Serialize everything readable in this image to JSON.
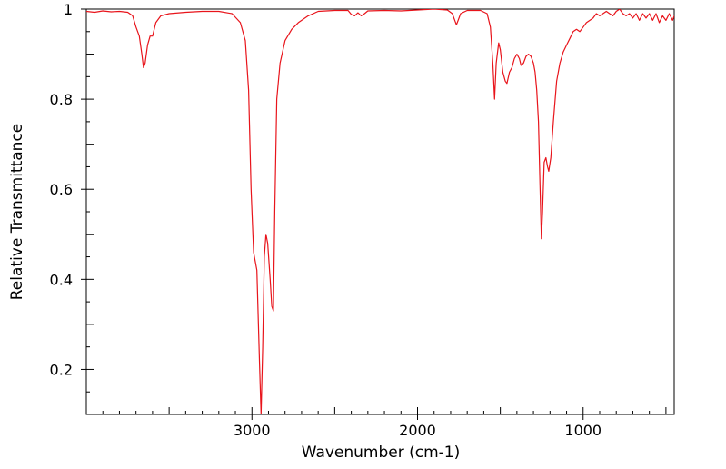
{
  "chart_data": {
    "type": "line",
    "title": "",
    "xlabel": "Wavenumber (cm-1)",
    "ylabel": "Relative Transmittance",
    "xlim": [
      4000,
      450
    ],
    "ylim": [
      0.1,
      1.0
    ],
    "x_reversed": true,
    "grid": false,
    "legend": "none",
    "line_color": "#e8141b",
    "x_ticks": [
      {
        "value": 3000,
        "label": "3000"
      },
      {
        "value": 2000,
        "label": "2000"
      },
      {
        "value": 1000,
        "label": "1000"
      }
    ],
    "y_ticks": [
      {
        "value": 1.0,
        "label": "1"
      },
      {
        "value": 0.8,
        "label": "0.8"
      },
      {
        "value": 0.6,
        "label": "0.6"
      },
      {
        "value": 0.4,
        "label": "0.4"
      },
      {
        "value": 0.2,
        "label": "0.2"
      }
    ],
    "series": [
      {
        "points": [
          [
            4000,
            0.995
          ],
          [
            3950,
            0.993
          ],
          [
            3900,
            0.996
          ],
          [
            3850,
            0.994
          ],
          [
            3800,
            0.995
          ],
          [
            3750,
            0.993
          ],
          [
            3720,
            0.985
          ],
          [
            3700,
            0.96
          ],
          [
            3680,
            0.94
          ],
          [
            3665,
            0.9
          ],
          [
            3655,
            0.87
          ],
          [
            3645,
            0.88
          ],
          [
            3630,
            0.92
          ],
          [
            3615,
            0.94
          ],
          [
            3600,
            0.94
          ],
          [
            3580,
            0.97
          ],
          [
            3550,
            0.985
          ],
          [
            3500,
            0.99
          ],
          [
            3400,
            0.993
          ],
          [
            3300,
            0.995
          ],
          [
            3200,
            0.995
          ],
          [
            3120,
            0.99
          ],
          [
            3070,
            0.97
          ],
          [
            3040,
            0.93
          ],
          [
            3020,
            0.82
          ],
          [
            3005,
            0.6
          ],
          [
            2990,
            0.46
          ],
          [
            2970,
            0.42
          ],
          [
            2955,
            0.22
          ],
          [
            2945,
            0.1
          ],
          [
            2935,
            0.25
          ],
          [
            2925,
            0.45
          ],
          [
            2915,
            0.5
          ],
          [
            2905,
            0.48
          ],
          [
            2890,
            0.4
          ],
          [
            2880,
            0.34
          ],
          [
            2870,
            0.33
          ],
          [
            2862,
            0.55
          ],
          [
            2850,
            0.8
          ],
          [
            2830,
            0.88
          ],
          [
            2800,
            0.93
          ],
          [
            2760,
            0.955
          ],
          [
            2720,
            0.97
          ],
          [
            2660,
            0.985
          ],
          [
            2600,
            0.995
          ],
          [
            2500,
            0.997
          ],
          [
            2420,
            0.997
          ],
          [
            2400,
            0.988
          ],
          [
            2380,
            0.985
          ],
          [
            2360,
            0.992
          ],
          [
            2340,
            0.985
          ],
          [
            2320,
            0.99
          ],
          [
            2300,
            0.996
          ],
          [
            2200,
            0.997
          ],
          [
            2100,
            0.996
          ],
          [
            2000,
            0.998
          ],
          [
            1900,
            1.0
          ],
          [
            1820,
            0.998
          ],
          [
            1790,
            0.99
          ],
          [
            1775,
            0.975
          ],
          [
            1765,
            0.965
          ],
          [
            1755,
            0.975
          ],
          [
            1740,
            0.99
          ],
          [
            1700,
            0.997
          ],
          [
            1620,
            0.997
          ],
          [
            1580,
            0.99
          ],
          [
            1560,
            0.96
          ],
          [
            1545,
            0.88
          ],
          [
            1535,
            0.8
          ],
          [
            1525,
            0.88
          ],
          [
            1510,
            0.925
          ],
          [
            1500,
            0.91
          ],
          [
            1485,
            0.86
          ],
          [
            1470,
            0.84
          ],
          [
            1460,
            0.835
          ],
          [
            1445,
            0.86
          ],
          [
            1430,
            0.87
          ],
          [
            1415,
            0.89
          ],
          [
            1400,
            0.9
          ],
          [
            1385,
            0.89
          ],
          [
            1375,
            0.875
          ],
          [
            1360,
            0.88
          ],
          [
            1345,
            0.895
          ],
          [
            1330,
            0.9
          ],
          [
            1315,
            0.895
          ],
          [
            1300,
            0.88
          ],
          [
            1290,
            0.86
          ],
          [
            1280,
            0.82
          ],
          [
            1270,
            0.75
          ],
          [
            1260,
            0.6
          ],
          [
            1252,
            0.49
          ],
          [
            1245,
            0.55
          ],
          [
            1235,
            0.66
          ],
          [
            1225,
            0.67
          ],
          [
            1215,
            0.65
          ],
          [
            1208,
            0.64
          ],
          [
            1195,
            0.67
          ],
          [
            1180,
            0.75
          ],
          [
            1160,
            0.84
          ],
          [
            1140,
            0.88
          ],
          [
            1120,
            0.905
          ],
          [
            1100,
            0.92
          ],
          [
            1080,
            0.935
          ],
          [
            1060,
            0.95
          ],
          [
            1040,
            0.955
          ],
          [
            1020,
            0.95
          ],
          [
            1000,
            0.96
          ],
          [
            980,
            0.97
          ],
          [
            960,
            0.975
          ],
          [
            940,
            0.98
          ],
          [
            920,
            0.99
          ],
          [
            900,
            0.985
          ],
          [
            880,
            0.99
          ],
          [
            860,
            0.995
          ],
          [
            840,
            0.99
          ],
          [
            820,
            0.985
          ],
          [
            800,
            0.995
          ],
          [
            780,
            1.0
          ],
          [
            760,
            0.99
          ],
          [
            740,
            0.985
          ],
          [
            720,
            0.99
          ],
          [
            700,
            0.98
          ],
          [
            680,
            0.99
          ],
          [
            660,
            0.975
          ],
          [
            640,
            0.99
          ],
          [
            620,
            0.98
          ],
          [
            600,
            0.99
          ],
          [
            580,
            0.975
          ],
          [
            560,
            0.99
          ],
          [
            540,
            0.97
          ],
          [
            520,
            0.985
          ],
          [
            500,
            0.975
          ],
          [
            480,
            0.99
          ],
          [
            460,
            0.975
          ],
          [
            450,
            0.985
          ]
        ]
      }
    ]
  }
}
